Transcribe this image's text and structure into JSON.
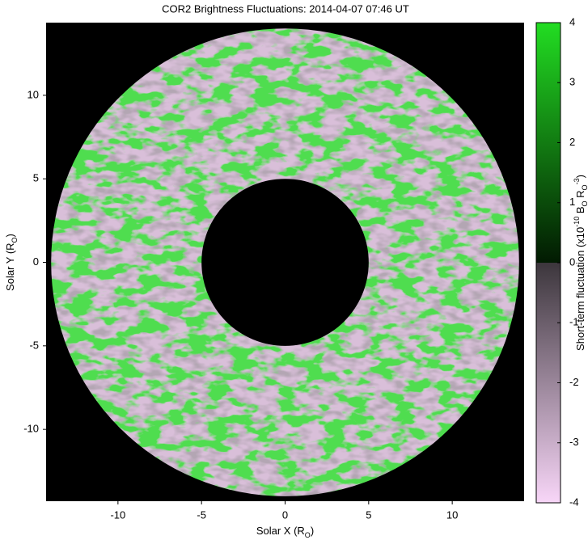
{
  "chart_data": {
    "type": "heatmap",
    "title": "COR2 Brightness Fluctuations: 2014-04-07 07:46 UT",
    "x_label": [
      {
        "text": "Solar X (R"
      },
      {
        "text": "O",
        "shift": "sub"
      },
      {
        "text": ")"
      }
    ],
    "y_label": [
      {
        "text": "Solar Y (R"
      },
      {
        "text": "O",
        "shift": "sub"
      },
      {
        "text": ")"
      }
    ],
    "xlim": [
      -14.3,
      14.3
    ],
    "ylim": [
      -14.3,
      14.35
    ],
    "xticks": [
      -10,
      -5,
      0,
      5,
      10
    ],
    "yticks": [
      -10,
      -5,
      0,
      5,
      10
    ],
    "annulus": {
      "r_inner": 5,
      "r_outer": 14
    },
    "colorbar": {
      "label": [
        {
          "text": "Short-term fluctuation (x10"
        },
        {
          "text": "-10",
          "shift": "super"
        },
        {
          "text": " B"
        },
        {
          "text": "O",
          "shift": "sub"
        },
        {
          "text": " R"
        },
        {
          "text": "O",
          "shift": "sub"
        },
        {
          "text": "-3",
          "shift": "super"
        },
        {
          "text": ")"
        }
      ],
      "zlim": [
        -4,
        4
      ],
      "zticks": [
        -4,
        -3,
        -2,
        -1,
        0,
        1,
        2,
        3,
        4
      ],
      "colormap": [
        {
          "value": -4,
          "color": "#f8d6f8"
        },
        {
          "value": 0,
          "color": "#3c363c"
        },
        {
          "value": 0,
          "color": "#021a02"
        },
        {
          "value": 4,
          "color": "#22dd22"
        }
      ]
    }
  }
}
